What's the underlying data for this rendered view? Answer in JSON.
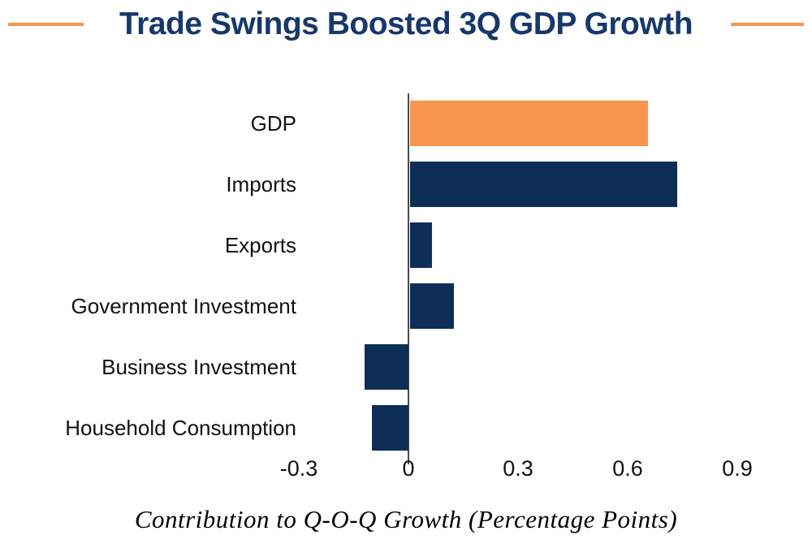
{
  "header": {
    "title": "Trade Swings Boosted 3Q GDP Growth",
    "accent_color": "#F6954E",
    "title_color": "#17386B"
  },
  "chart_data": {
    "type": "bar",
    "orientation": "horizontal",
    "title": "Trade Swings Boosted 3Q GDP Growth",
    "xlabel": "Contribution to Q-O-Q Growth (Percentage Points)",
    "categories": [
      "GDP",
      "Imports",
      "Exports",
      "Government Investment",
      "Business Investment",
      "Household Consumption"
    ],
    "values": [
      0.65,
      0.73,
      0.06,
      0.12,
      -0.12,
      -0.1
    ],
    "bar_colors": [
      "#F6954E",
      "#0D2E57",
      "#0D2E57",
      "#0D2E57",
      "#0D2E57",
      "#0D2E57"
    ],
    "xlim": [
      -0.42,
      1.05
    ],
    "xticks": [
      -0.3,
      0,
      0.3,
      0.6,
      0.9
    ],
    "xtick_labels": [
      "-0.3",
      "0",
      "0.3",
      "0.6",
      "0.9"
    ],
    "grid": false,
    "legend": null,
    "zero_axis_line": true
  }
}
